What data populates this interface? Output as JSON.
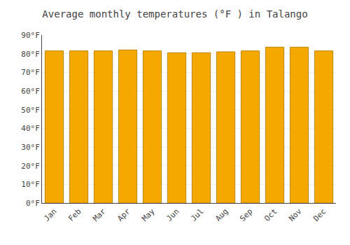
{
  "chart_data": {
    "type": "bar",
    "title": "Average monthly temperatures (°F ) in Talango",
    "categories": [
      "Jan",
      "Feb",
      "Mar",
      "Apr",
      "May",
      "Jun",
      "Jul",
      "Aug",
      "Sep",
      "Oct",
      "Nov",
      "Dec"
    ],
    "values": [
      81.5,
      81.5,
      81.5,
      82.0,
      81.5,
      80.5,
      80.5,
      81.0,
      81.5,
      83.5,
      83.5,
      81.5
    ],
    "color": "#F5A800",
    "ylim": [
      0,
      90
    ],
    "yticks": [
      {
        "value": 0,
        "label": "0°F"
      },
      {
        "value": 10,
        "label": "10°F"
      },
      {
        "value": 20,
        "label": "20°F"
      },
      {
        "value": 30,
        "label": "30°F"
      },
      {
        "value": 40,
        "label": "40°F"
      },
      {
        "value": 50,
        "label": "50°F"
      },
      {
        "value": 60,
        "label": "60°F"
      },
      {
        "value": 70,
        "label": "70°F"
      },
      {
        "value": 80,
        "label": "80°F"
      },
      {
        "value": 90,
        "label": "90°F"
      }
    ],
    "grid": true
  }
}
